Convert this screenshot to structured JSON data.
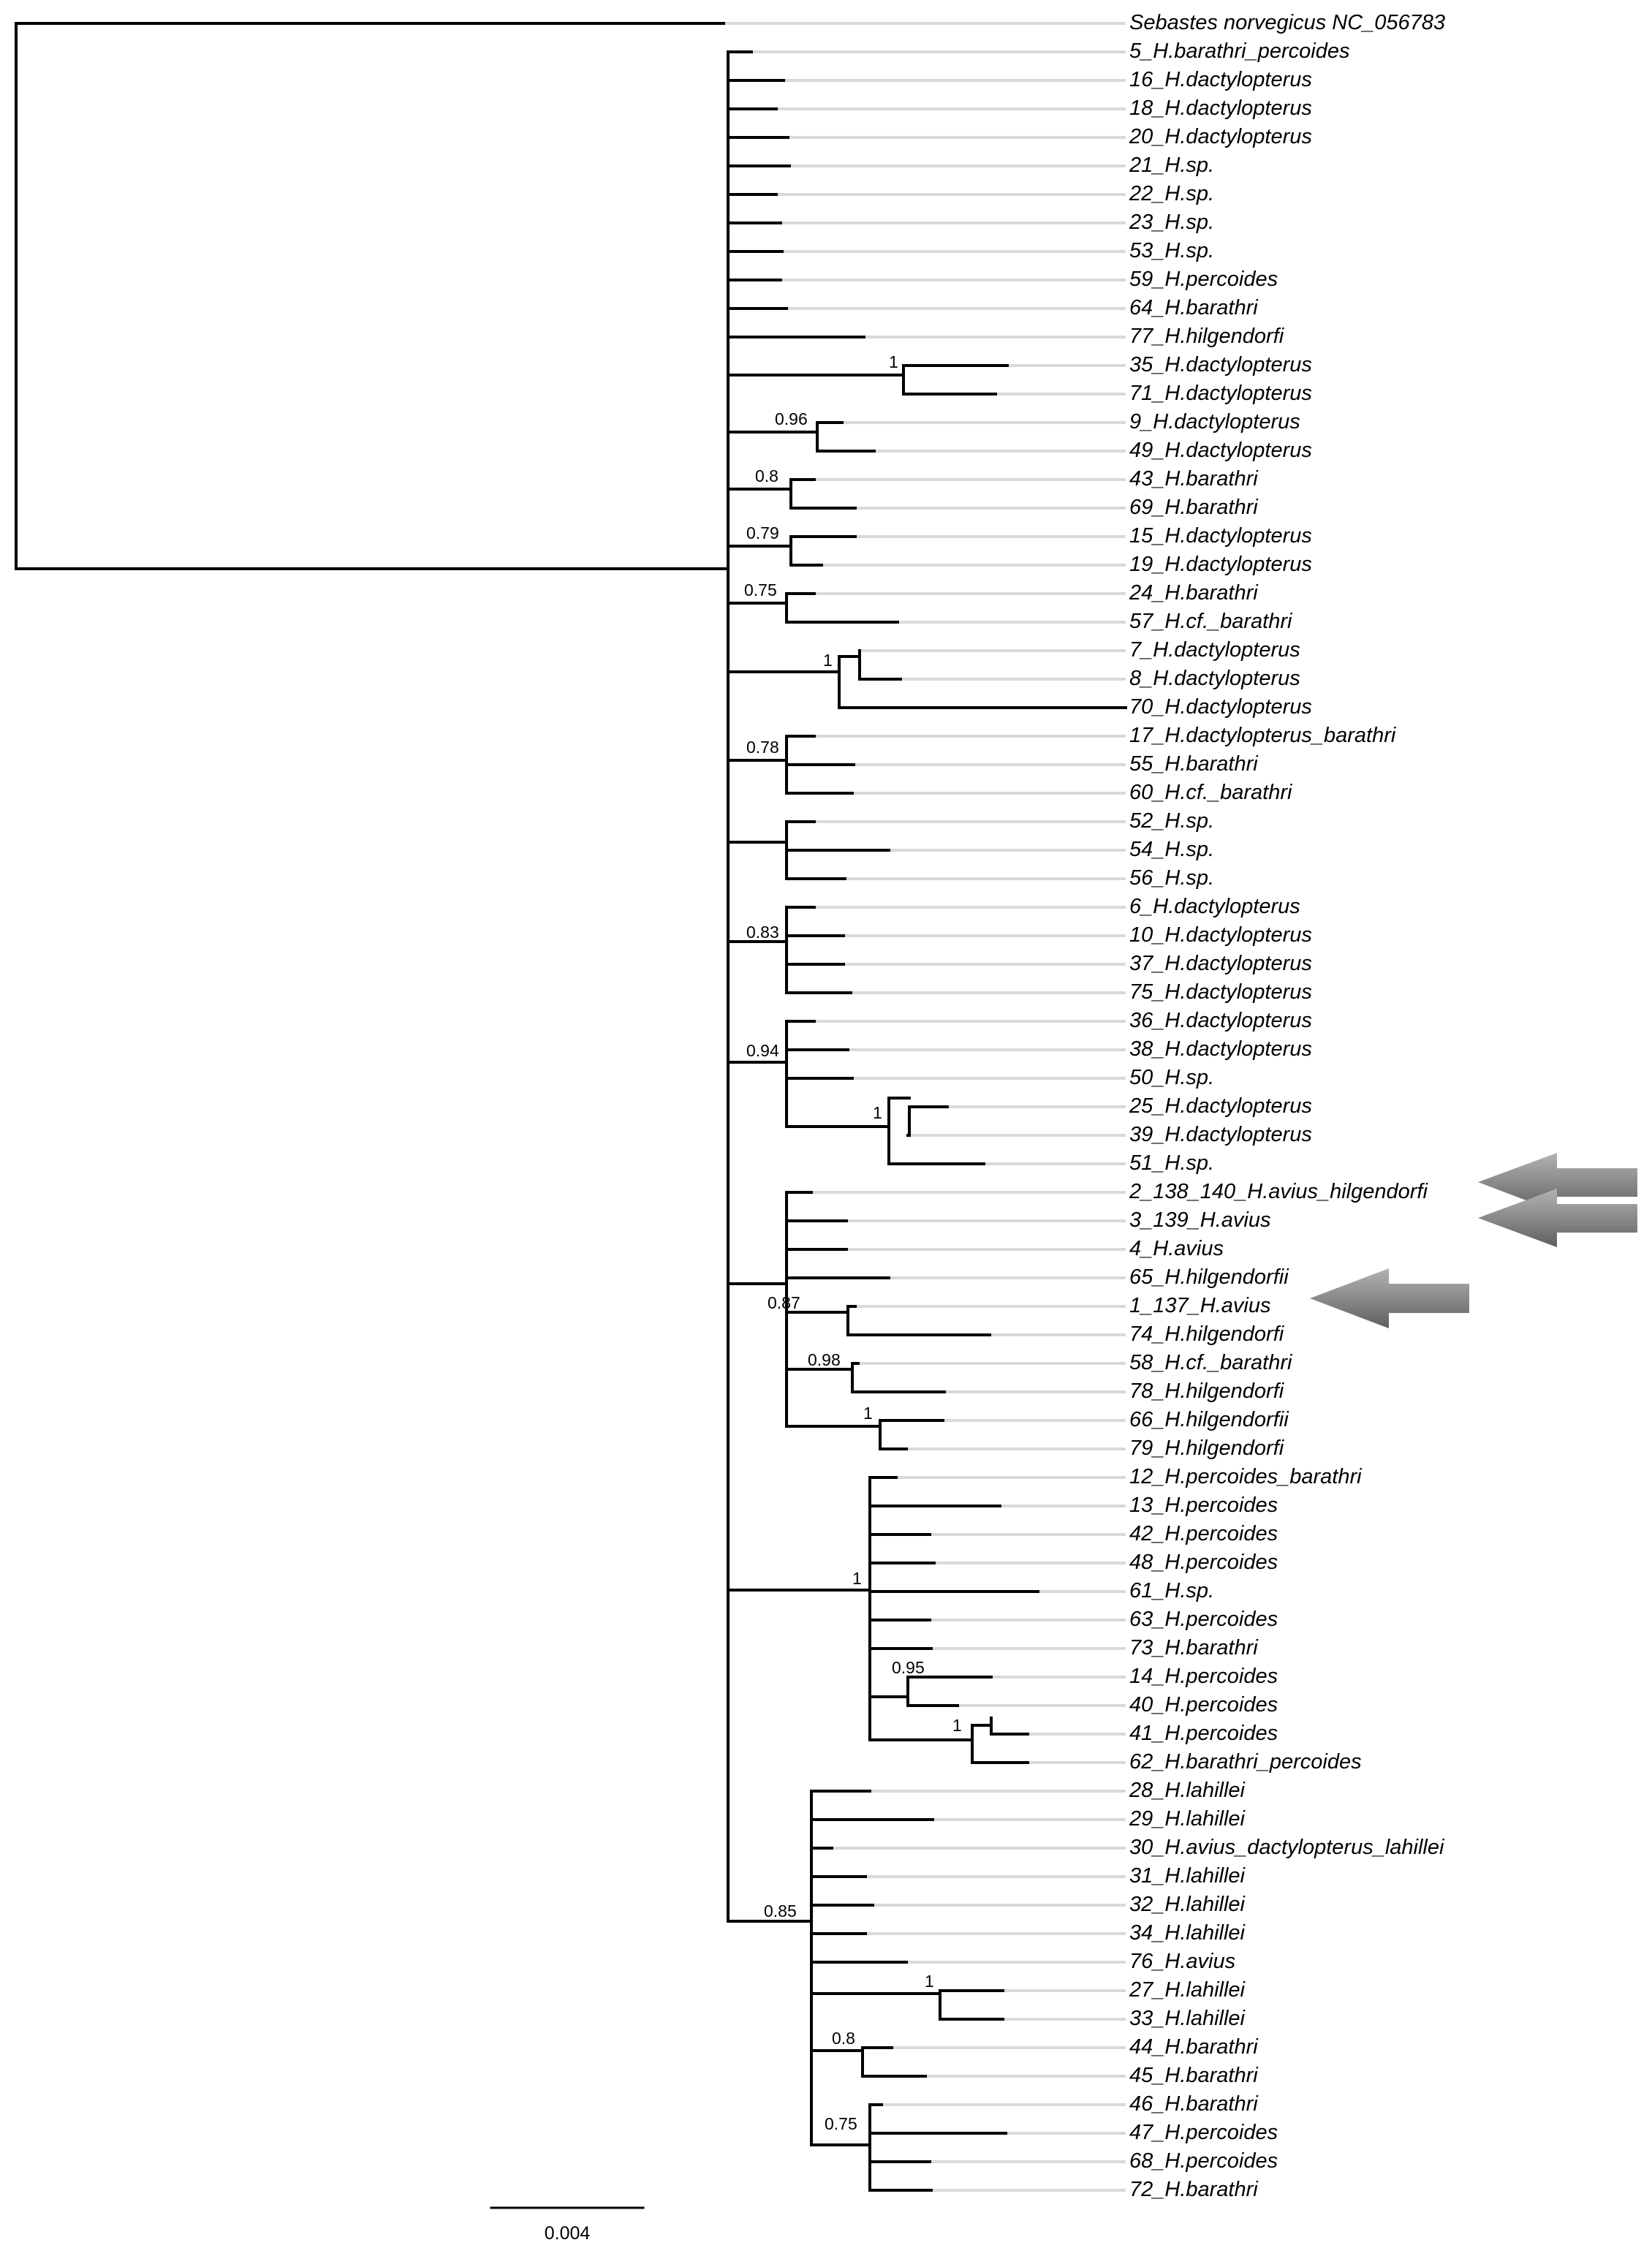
{
  "tree": {
    "outgroup_label": "Sebastes norvegicus  NC_056783",
    "tips": [
      "5_H.barathri_percoides",
      "16_H.dactylopterus",
      "18_H.dactylopterus",
      "20_H.dactylopterus",
      "21_H.sp.",
      "22_H.sp.",
      "23_H.sp.",
      "53_H.sp.",
      "59_H.percoides",
      "64_H.barathri",
      "77_H.hilgendorfi",
      "35_H.dactylopterus",
      "71_H.dactylopterus",
      "9_H.dactylopterus",
      "49_H.dactylopterus",
      "43_H.barathri",
      "69_H.barathri",
      "15_H.dactylopterus",
      "19_H.dactylopterus",
      "24_H.barathri",
      "57_H.cf._barathri",
      "7_H.dactylopterus",
      "8_H.dactylopterus",
      "70_H.dactylopterus",
      "17_H.dactylopterus_barathri",
      "55_H.barathri",
      "60_H.cf._barathri",
      "52_H.sp.",
      "54_H.sp.",
      "56_H.sp.",
      "6_H.dactylopterus",
      "10_H.dactylopterus",
      "37_H.dactylopterus",
      "75_H.dactylopterus",
      "36_H.dactylopterus",
      "38_H.dactylopterus",
      "50_H.sp.",
      "25_H.dactylopterus",
      "39_H.dactylopterus",
      "51_H.sp.",
      "2_138_140_H.avius_hilgendorfi",
      "3_139_H.avius",
      "4_H.avius",
      "65_H.hilgendorfii",
      "1_137_H.avius",
      "74_H.hilgendorfi",
      "58_H.cf._barathri",
      "78_H.hilgendorfi",
      "66_H.hilgendorfii",
      "79_H.hilgendorfi",
      "12_H.percoides_barathri",
      "13_H.percoides",
      "42_H.percoides",
      "48_H.percoides",
      "61_H.sp.",
      "63_H.percoides",
      "73_H.barathri",
      "14_H.percoides",
      "40_H.percoides",
      "41_H.percoides",
      "62_H.barathri_percoides",
      "28_H.lahillei",
      "29_H.lahillei",
      "30_H.avius_dactylopterus_lahillei",
      "31_H.lahillei",
      "32_H.lahillei",
      "34_H.lahillei",
      "76_H.avius",
      "27_H.lahillei",
      "33_H.lahillei",
      "44_H.barathri",
      "45_H.barathri",
      "46_H.barathri",
      "47_H.percoides",
      "68_H.percoides",
      "72_H.barathri"
    ],
    "support_values": [
      "1",
      "0.96",
      "0.8",
      "0.79",
      "0.75",
      "1",
      "0.78",
      "0.83",
      "0.94",
      "1",
      "0.87",
      "0.98",
      "1",
      "1",
      "0.95",
      "1",
      "0.85",
      "1",
      "0.8",
      "0.75"
    ],
    "scale_label": "0.004",
    "highlighted_tips": [
      "2_138_140_H.avius_hilgendorfi",
      "3_139_H.avius",
      "1_137_H.avius"
    ]
  }
}
